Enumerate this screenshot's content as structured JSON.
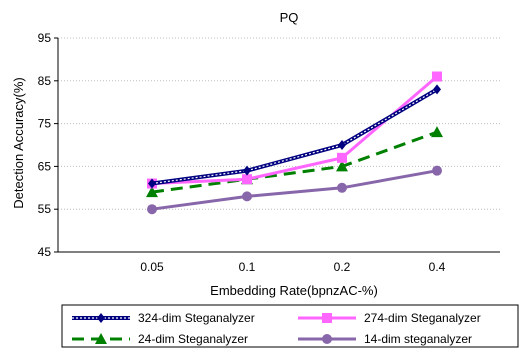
{
  "chart_data": {
    "type": "line",
    "title": "PQ",
    "xlabel": "Embedding Rate(bpnzAC-%)",
    "ylabel": "Detection Accuracy(%)",
    "categories": [
      "0.05",
      "0.1",
      "0.2",
      "0.4"
    ],
    "ylim": [
      45,
      95
    ],
    "yticks": [
      45,
      55,
      65,
      75,
      85,
      95
    ],
    "grid": "horizontal",
    "legend_position": "bottom",
    "series": [
      {
        "name": "324-dim Steganalyzer",
        "values": [
          61,
          64,
          70,
          83
        ],
        "color": "#000080",
        "style": "double-line",
        "marker": "diamond"
      },
      {
        "name": "274-dim Steganalyzer",
        "values": [
          61,
          62,
          67,
          86
        ],
        "color": "#ff66ff",
        "style": "solid",
        "marker": "square"
      },
      {
        "name": "24-dim Steganalyzer",
        "values": [
          59,
          62,
          65,
          73
        ],
        "color": "#008000",
        "style": "dashed",
        "marker": "triangle"
      },
      {
        "name": "14-dim steganalyzer",
        "values": [
          55,
          58,
          60,
          64
        ],
        "color": "#8866aa",
        "style": "solid",
        "marker": "circle"
      }
    ]
  }
}
